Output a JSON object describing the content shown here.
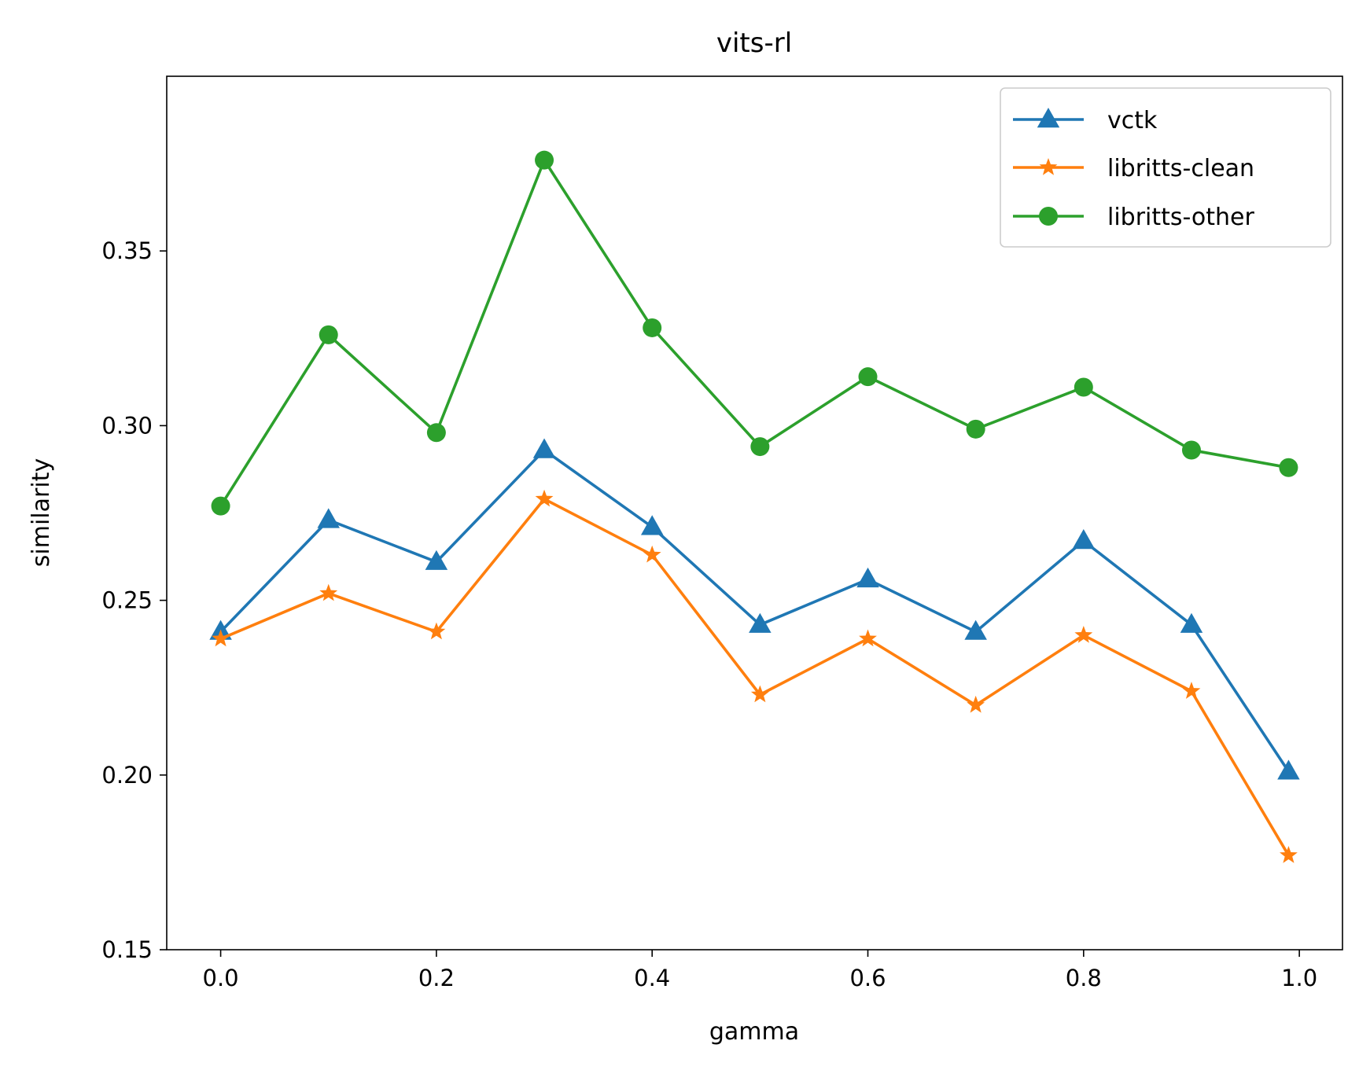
{
  "chart_data": {
    "type": "line",
    "title": "vits-rl",
    "xlabel": "gamma",
    "ylabel": "similarity",
    "xlim": [
      -0.05,
      1.04
    ],
    "ylim": [
      0.15,
      0.4
    ],
    "xticks": [
      0.0,
      0.2,
      0.4,
      0.6,
      0.8,
      1.0
    ],
    "xtick_labels": [
      "0.0",
      "0.2",
      "0.4",
      "0.6",
      "0.8",
      "1.0"
    ],
    "yticks": [
      0.15,
      0.2,
      0.25,
      0.3,
      0.35
    ],
    "ytick_labels": [
      "0.15",
      "0.20",
      "0.25",
      "0.30",
      "0.35"
    ],
    "grid": false,
    "legend_position": "top-right",
    "x": [
      0.0,
      0.1,
      0.2,
      0.3,
      0.4,
      0.5,
      0.6,
      0.7,
      0.8,
      0.9,
      0.99
    ],
    "series": [
      {
        "name": "vctk",
        "color": "#1f77b4",
        "marker": "triangle",
        "values": [
          0.241,
          0.273,
          0.261,
          0.293,
          0.271,
          0.243,
          0.256,
          0.241,
          0.267,
          0.243,
          0.201
        ]
      },
      {
        "name": "libritts-clean",
        "color": "#ff7f0e",
        "marker": "star",
        "values": [
          0.239,
          0.252,
          0.241,
          0.279,
          0.263,
          0.223,
          0.239,
          0.22,
          0.24,
          0.224,
          0.177
        ]
      },
      {
        "name": "libritts-other",
        "color": "#2ca02c",
        "marker": "circle",
        "values": [
          0.277,
          0.326,
          0.298,
          0.376,
          0.328,
          0.294,
          0.314,
          0.299,
          0.311,
          0.293,
          0.288
        ]
      }
    ]
  }
}
